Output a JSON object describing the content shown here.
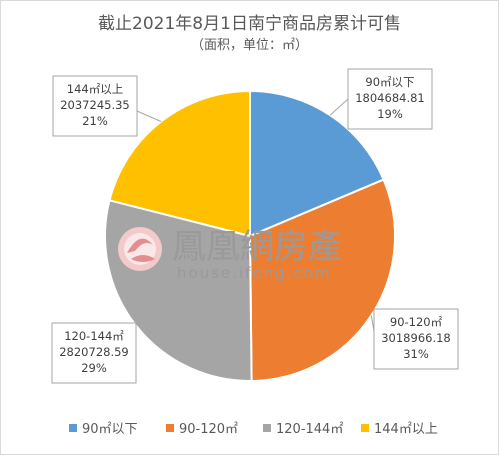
{
  "chart_data": {
    "type": "pie",
    "title": "截止2021年8月1日南宁商品房累计可售",
    "subtitle": "（面积，单位：㎡）",
    "categories": [
      "90㎡以下",
      "90-120㎡",
      "120-144㎡",
      "144㎡以上"
    ],
    "values": [
      1804684.81,
      3018966.18,
      2820728.59,
      2037245.35
    ],
    "percent_labels": [
      "19%",
      "31%",
      "29%",
      "21%"
    ],
    "value_labels": [
      "1804684.81",
      "3018966.18",
      "2820728.59",
      "2037245.35"
    ],
    "colors": [
      "#5b9bd5",
      "#ed7d31",
      "#a5a5a5",
      "#ffc000"
    ],
    "legend_position": "bottom"
  },
  "watermark": {
    "brand_cn": "鳳凰網房產",
    "brand_url": "house.ifeng.com"
  }
}
